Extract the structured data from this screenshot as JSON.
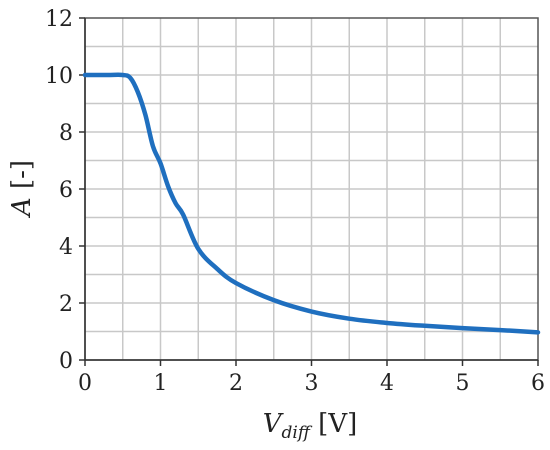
{
  "chart_data": {
    "type": "line",
    "title": "",
    "xlabel": "V_diff [V]",
    "xlabel_parts": {
      "main": "V",
      "sub": "diff",
      "unit": " [V]"
    },
    "ylabel": "A [-]",
    "ylabel_parts": {
      "main": "A",
      "unit": " [-]"
    },
    "xlim": [
      0,
      6
    ],
    "ylim": [
      0,
      12
    ],
    "x_ticks": [
      0,
      1,
      2,
      3,
      4,
      5,
      6
    ],
    "y_ticks": [
      0,
      2,
      4,
      6,
      8,
      10,
      12
    ],
    "x_minor_step": 0.5,
    "y_minor_step": 1,
    "grid": true,
    "legend": "none",
    "series": [
      {
        "color": "#1f6fbf",
        "x": [
          0,
          0.3,
          0.5,
          0.6,
          0.7,
          0.8,
          0.9,
          1.0,
          1.1,
          1.2,
          1.3,
          1.5,
          1.75,
          2.0,
          2.5,
          3.0,
          3.5,
          4.0,
          4.5,
          5.0,
          5.5,
          6.0
        ],
        "y": [
          10.0,
          10.0,
          10.0,
          9.9,
          9.4,
          8.6,
          7.5,
          6.9,
          6.1,
          5.5,
          5.1,
          3.9,
          3.2,
          2.7,
          2.1,
          1.7,
          1.45,
          1.3,
          1.2,
          1.12,
          1.05,
          0.97
        ]
      }
    ]
  }
}
